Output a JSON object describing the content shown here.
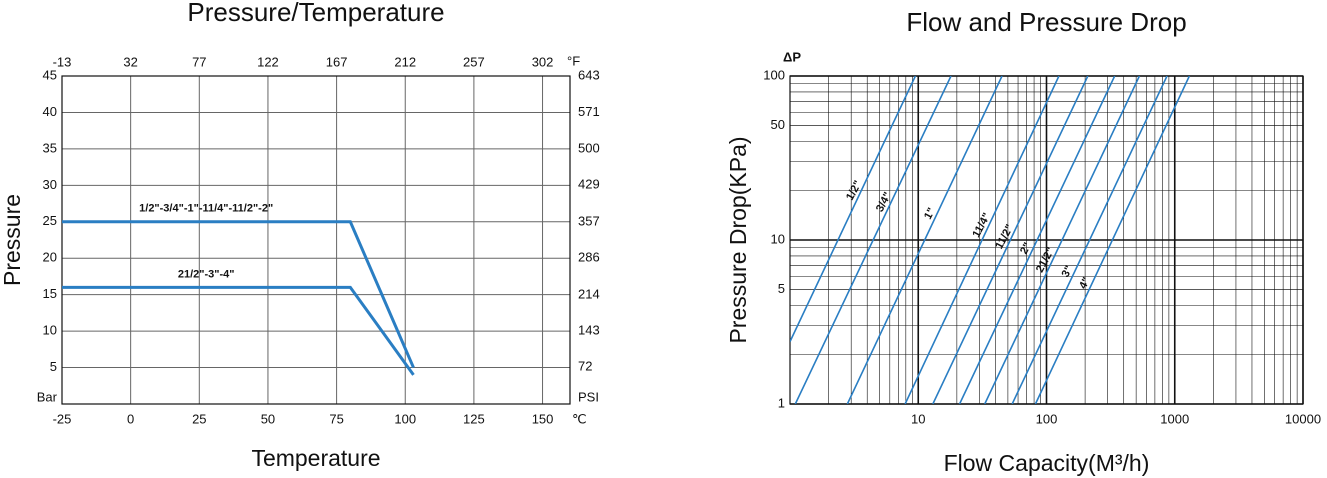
{
  "chart_data": [
    {
      "type": "line",
      "title": "Pressure/Temperature",
      "x_label": "Temperature",
      "y_label": "Pressure",
      "x_unit": "℃",
      "x2_unit": "°F",
      "xlim": [
        -25,
        160
      ],
      "xticks": [
        -25,
        0,
        25,
        50,
        75,
        100,
        125,
        150
      ],
      "x2lim": [
        -13,
        320
      ],
      "x2ticks": [
        -13,
        32,
        77,
        122,
        167,
        212,
        257,
        302
      ],
      "ylim": [
        0,
        45
      ],
      "yticks": [
        {
          "value": 0,
          "label": "Bar"
        },
        5,
        10,
        15,
        20,
        25,
        30,
        35,
        40,
        45
      ],
      "y2lim": [
        0,
        643
      ],
      "y2ticks": [
        {
          "value": 0,
          "label": "PSI"
        },
        72,
        143,
        214,
        286,
        357,
        429,
        500,
        571,
        643
      ],
      "grid": true,
      "annotation_color": "#e3231c",
      "series": [
        {
          "name": "1/2\"-3/4\"-1\"-11/4\"-11/2\"-2\"",
          "color": "#2a7ec3",
          "x": [
            -25,
            80,
            103
          ],
          "values": [
            25,
            25,
            5
          ]
        },
        {
          "name": "21/2\"-3\"-4\"",
          "color": "#2a7ec3",
          "x": [
            -25,
            80,
            103
          ],
          "values": [
            16,
            16,
            4
          ]
        }
      ]
    },
    {
      "type": "line",
      "title": "Flow and Pressure Drop",
      "x_label": "Flow Capacity(M³/h)",
      "y_label": "Pressure Drop(KPa)",
      "y_unit": "ΔP",
      "xscale": "log",
      "yscale": "log",
      "xlim": [
        1,
        10000
      ],
      "xticks": [
        10,
        100,
        1000,
        10000
      ],
      "ylim": [
        1,
        100
      ],
      "yticks": [
        1,
        5,
        10,
        50,
        100
      ],
      "grid": true,
      "minor_grid": true,
      "annotation_color": "#e3231c",
      "series": [
        {
          "name": "1/2\"",
          "color": "#2a7ec3",
          "x": [
            1,
            9.5
          ],
          "values": [
            2.4,
            100
          ]
        },
        {
          "name": "3/4\"",
          "color": "#2a7ec3",
          "x": [
            1.1,
            18
          ],
          "values": [
            1,
            100
          ]
        },
        {
          "name": "1\"",
          "color": "#2a7ec3",
          "x": [
            2.8,
            45
          ],
          "values": [
            1,
            100
          ]
        },
        {
          "name": "11/4\"",
          "color": "#2a7ec3",
          "x": [
            7.9,
            125
          ],
          "values": [
            1,
            100
          ]
        },
        {
          "name": "11/2\"",
          "color": "#2a7ec3",
          "x": [
            13,
            210
          ],
          "values": [
            1,
            100
          ]
        },
        {
          "name": "2\"",
          "color": "#2a7ec3",
          "x": [
            21,
            340
          ],
          "values": [
            1,
            100
          ]
        },
        {
          "name": "21/2\"",
          "color": "#2a7ec3",
          "x": [
            33,
            530
          ],
          "values": [
            1,
            100
          ]
        },
        {
          "name": "3\"",
          "color": "#2a7ec3",
          "x": [
            54,
            870
          ],
          "values": [
            1,
            100
          ]
        },
        {
          "name": "4\"",
          "color": "#2a7ec3",
          "x": [
            82,
            1300
          ],
          "values": [
            1,
            100
          ]
        }
      ]
    }
  ]
}
